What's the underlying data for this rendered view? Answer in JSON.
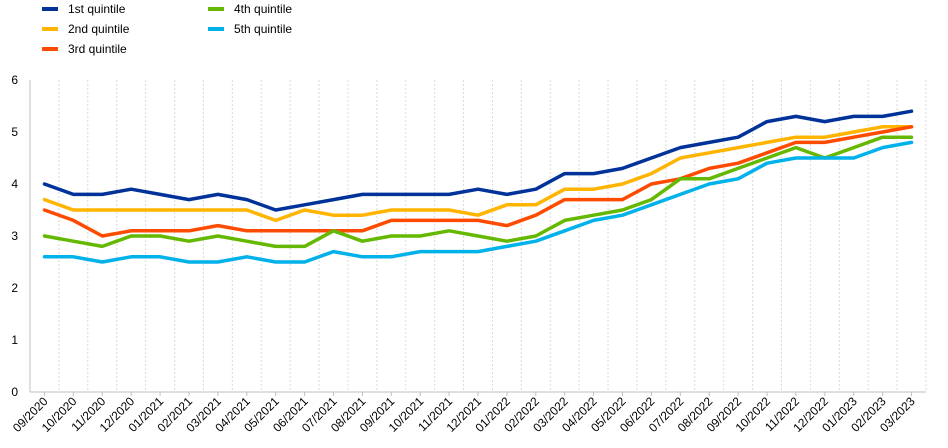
{
  "chart_data": {
    "type": "line",
    "title": "",
    "xlabel": "",
    "ylabel": "",
    "ylim": [
      0,
      6
    ],
    "yticks": [
      0,
      1,
      2,
      3,
      4,
      5,
      6
    ],
    "grid": "vertical gridlines",
    "legend_position": "top-left",
    "categories": [
      "09/2020",
      "10/2020",
      "11/2020",
      "12/2020",
      "01/2021",
      "02/2021",
      "03/2021",
      "04/2021",
      "05/2021",
      "06/2021",
      "07/2021",
      "08/2021",
      "09/2021",
      "10/2021",
      "11/2021",
      "12/2021",
      "01/2022",
      "02/2022",
      "03/2022",
      "04/2022",
      "05/2022",
      "06/2022",
      "07/2022",
      "08/2022",
      "09/2022",
      "10/2022",
      "11/2022",
      "12/2022",
      "01/2023",
      "02/2023",
      "03/2023"
    ],
    "series": [
      {
        "name": "1st quintile",
        "color": "#003299",
        "values": [
          4.0,
          3.8,
          3.8,
          3.9,
          3.8,
          3.7,
          3.8,
          3.7,
          3.5,
          3.6,
          3.7,
          3.8,
          3.8,
          3.8,
          3.8,
          3.9,
          3.8,
          3.9,
          4.2,
          4.2,
          4.3,
          4.5,
          4.7,
          4.8,
          4.9,
          5.2,
          5.3,
          5.2,
          5.3,
          5.3,
          5.4
        ]
      },
      {
        "name": "2nd quintile",
        "color": "#FFB400",
        "values": [
          3.7,
          3.5,
          3.5,
          3.5,
          3.5,
          3.5,
          3.5,
          3.5,
          3.3,
          3.5,
          3.4,
          3.4,
          3.5,
          3.5,
          3.5,
          3.4,
          3.6,
          3.6,
          3.9,
          3.9,
          4.0,
          4.2,
          4.5,
          4.6,
          4.7,
          4.8,
          4.9,
          4.9,
          5.0,
          5.1,
          5.1
        ]
      },
      {
        "name": "3rd quintile",
        "color": "#FF4B00",
        "values": [
          3.5,
          3.3,
          3.0,
          3.1,
          3.1,
          3.1,
          3.2,
          3.1,
          3.1,
          3.1,
          3.1,
          3.1,
          3.3,
          3.3,
          3.3,
          3.3,
          3.2,
          3.4,
          3.7,
          3.7,
          3.7,
          4.0,
          4.1,
          4.3,
          4.4,
          4.6,
          4.8,
          4.8,
          4.9,
          5.0,
          5.1
        ]
      },
      {
        "name": "4th quintile",
        "color": "#65B800",
        "values": [
          3.0,
          2.9,
          2.8,
          3.0,
          3.0,
          2.9,
          3.0,
          2.9,
          2.8,
          2.8,
          3.1,
          2.9,
          3.0,
          3.0,
          3.1,
          3.0,
          2.9,
          3.0,
          3.3,
          3.4,
          3.5,
          3.7,
          4.1,
          4.1,
          4.3,
          4.5,
          4.7,
          4.5,
          4.7,
          4.9,
          4.9
        ]
      },
      {
        "name": "5th quintile",
        "color": "#00B1EA",
        "values": [
          2.6,
          2.6,
          2.5,
          2.6,
          2.6,
          2.5,
          2.5,
          2.6,
          2.5,
          2.5,
          2.7,
          2.6,
          2.6,
          2.7,
          2.7,
          2.7,
          2.8,
          2.9,
          3.1,
          3.3,
          3.4,
          3.6,
          3.8,
          4.0,
          4.1,
          4.4,
          4.5,
          4.5,
          4.5,
          4.7,
          4.8
        ]
      }
    ]
  }
}
